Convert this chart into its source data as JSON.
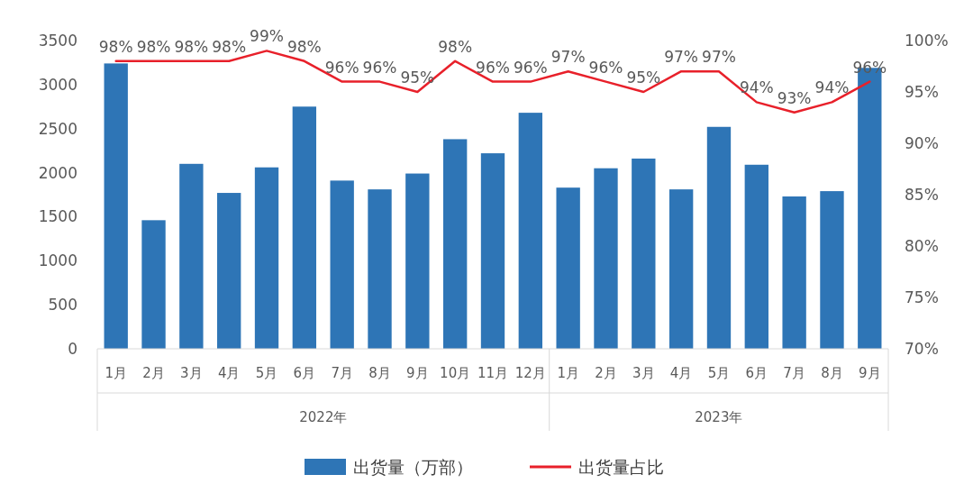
{
  "chart_data": {
    "type": "bar",
    "categories": [
      "1月",
      "2月",
      "3月",
      "4月",
      "5月",
      "6月",
      "7月",
      "8月",
      "9月",
      "10月",
      "11月",
      "12月",
      "1月",
      "2月",
      "3月",
      "4月",
      "5月",
      "6月",
      "7月",
      "8月",
      "9月"
    ],
    "series": [
      {
        "name": "出货量（万部）",
        "color": "#2e75b6",
        "values": [
          3240,
          1460,
          2100,
          1770,
          2060,
          2750,
          1910,
          1810,
          1990,
          2380,
          2220,
          2680,
          1830,
          2050,
          2160,
          1810,
          2520,
          2090,
          1730,
          1790,
          3190
        ]
      },
      {
        "name": "出货量占比",
        "type": "line",
        "axis": "y2",
        "color": "#e8202a",
        "values": [
          98,
          98,
          98,
          98,
          99,
          98,
          96,
          96,
          95,
          98,
          96,
          96,
          97,
          96,
          95,
          97,
          97,
          94,
          93,
          94,
          96
        ],
        "value_labels": [
          "98%",
          "98%",
          "98%",
          "98%",
          "99%",
          "98%",
          "96%",
          "96%",
          "95%",
          "98%",
          "96%",
          "96%",
          "97%",
          "96%",
          "95%",
          "97%",
          "97%",
          "94%",
          "93%",
          "94%",
          "96%"
        ]
      }
    ],
    "ylim": [
      0,
      3500
    ],
    "yticks": [
      0,
      500,
      1000,
      1500,
      2000,
      2500,
      3000,
      3500
    ],
    "y2lim": [
      70,
      100
    ],
    "y2ticks": [
      {
        "value": 70,
        "label": "70%"
      },
      {
        "value": 75,
        "label": "75%"
      },
      {
        "value": 80,
        "label": "80%"
      },
      {
        "value": 85,
        "label": "85%"
      },
      {
        "value": 90,
        "label": "90%"
      },
      {
        "value": 95,
        "label": "95%"
      },
      {
        "value": 100,
        "label": "100%"
      }
    ],
    "annotations": [
      "2022年",
      "2023年"
    ],
    "legend": "bottom",
    "marker": "none"
  }
}
